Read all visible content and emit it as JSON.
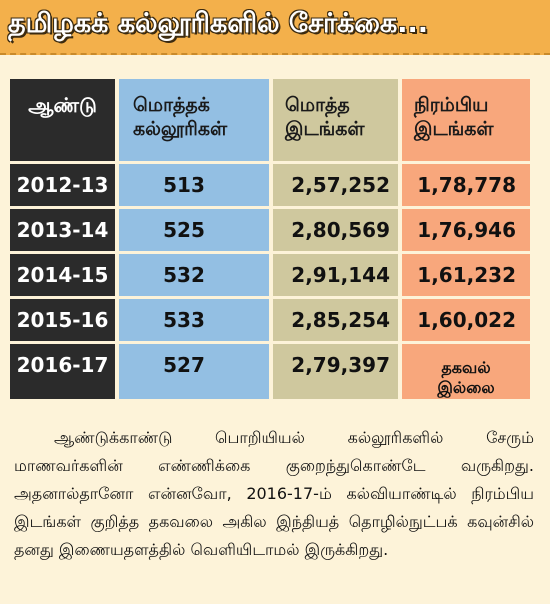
{
  "title": "தமிழகக் கல்லூரிகளில் சேர்க்கை...",
  "table": {
    "headers": {
      "year": "ஆண்டு",
      "colleges": [
        "மொத்தக்",
        "கல்லூரிகள்"
      ],
      "seats": [
        "மொத்த",
        "இடங்கள்"
      ],
      "filled": [
        "நிரம்பிய",
        "இடங்கள்"
      ]
    },
    "rows": [
      {
        "year": "2012-13",
        "colleges": "513",
        "seats": "2,57,252",
        "filled": "1,78,778"
      },
      {
        "year": "2013-14",
        "colleges": "525",
        "seats": "2,80,569",
        "filled": "1,76,946"
      },
      {
        "year": "2014-15",
        "colleges": "532",
        "seats": "2,91,144",
        "filled": "1,61,232"
      },
      {
        "year": "2015-16",
        "colleges": "533",
        "seats": "2,85,254",
        "filled": "1,60,022"
      },
      {
        "year": "2016-17",
        "colleges": "527",
        "seats": "2,79,397",
        "filled": [
          "தகவல்",
          "இல்லை"
        ]
      }
    ]
  },
  "paragraph": "ஆண்டுக்காண்டு பொறியியல் கல்லூரிகளில் சேரும் மாணவர்களின் எண்ணிக்கை குறைந்துகொண்டே வருகிறது. அதனால்தானோ என்னவோ, 2016-17-ம் கல்வியாண்டில் நிரம்பிய இடங்கள் குறித்த தகவலை அகில இந்தியத் தொழில்நுட்பக் கவுன்சில் தனது இணையதளத்தில் வெளியிடாமல் இருக்கிறது.",
  "colors": {
    "background": "#fdf3d9",
    "title_bar": "#f3b04b",
    "year_column": "#2b2b2b",
    "colleges_column": "#93bfe3",
    "seats_column": "#cfc89e",
    "filled_column": "#f8a77c"
  }
}
